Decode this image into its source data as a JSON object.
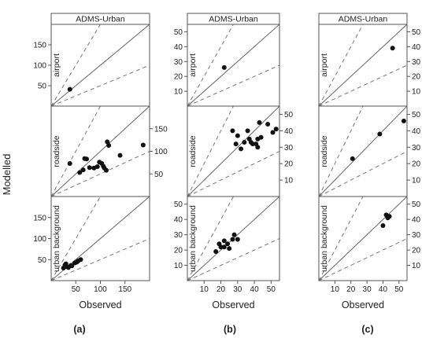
{
  "figure": {
    "ylabel": "Modelled",
    "xlabel": "Observed",
    "strip_label": "ADMS-Urban",
    "row_labels": [
      "airport",
      "roadside",
      "urban background"
    ]
  },
  "chart_data": [
    {
      "type": "scatter",
      "panel_label": "(a)",
      "strip": "ADMS-Urban",
      "xlabel": "Observed",
      "ylabel": "Modelled",
      "xlim": [
        0,
        200
      ],
      "ylim": [
        0,
        200
      ],
      "x_ticks": [
        50,
        100,
        150
      ],
      "y_ticks": [
        50,
        100,
        150
      ],
      "x_tick_labels": [
        "50",
        "100",
        "150"
      ],
      "y_tick_labels": [
        "50",
        "100",
        "150"
      ],
      "y_axis_side": [
        "left",
        "right",
        "left"
      ],
      "grid": false,
      "reference_lines": [
        "1:1",
        "2:1",
        "1:2"
      ],
      "rows": [
        {
          "row_label": "airport",
          "points": [
            [
              38,
              41
            ]
          ]
        },
        {
          "row_label": "roadside",
          "points": [
            [
              38,
              73
            ],
            [
              58,
              53
            ],
            [
              65,
              59
            ],
            [
              68,
              84
            ],
            [
              72,
              83
            ],
            [
              78,
              64
            ],
            [
              87,
              63
            ],
            [
              94,
              66
            ],
            [
              98,
              76
            ],
            [
              103,
              73
            ],
            [
              106,
              67
            ],
            [
              108,
              63
            ],
            [
              112,
              58
            ],
            [
              114,
              121
            ],
            [
              117,
              113
            ],
            [
              140,
              91
            ],
            [
              187,
              114
            ]
          ]
        },
        {
          "row_label": "urban background",
          "points": [
            [
              25,
              30
            ],
            [
              28,
              37
            ],
            [
              30,
              40
            ],
            [
              32,
              33
            ],
            [
              35,
              31
            ],
            [
              40,
              36
            ],
            [
              42,
              35
            ],
            [
              48,
              42
            ],
            [
              52,
              44
            ],
            [
              55,
              47
            ],
            [
              60,
              50
            ]
          ]
        }
      ]
    },
    {
      "type": "scatter",
      "panel_label": "(b)",
      "strip": "ADMS-Urban",
      "xlabel": "Observed",
      "ylabel": "Modelled",
      "xlim": [
        0,
        55
      ],
      "ylim": [
        0,
        55
      ],
      "x_ticks": [
        10,
        20,
        30,
        40,
        50
      ],
      "y_ticks": [
        10,
        20,
        30,
        40,
        50
      ],
      "x_tick_labels": [
        "10",
        "20",
        "30",
        "40",
        "50"
      ],
      "y_tick_labels": [
        "10",
        "20",
        "30",
        "40",
        "50"
      ],
      "y_axis_side": [
        "left",
        "right",
        "left"
      ],
      "grid": false,
      "reference_lines": [
        "1:1",
        "2:1",
        "1:2"
      ],
      "rows": [
        {
          "row_label": "airport",
          "points": [
            [
              22,
              26
            ]
          ]
        },
        {
          "row_label": "roadside",
          "points": [
            [
              27,
              40
            ],
            [
              29,
              32
            ],
            [
              30,
              37
            ],
            [
              32,
              29
            ],
            [
              34,
              33
            ],
            [
              36,
              40
            ],
            [
              37,
              35
            ],
            [
              38,
              33
            ],
            [
              39,
              32
            ],
            [
              41,
              32
            ],
            [
              42,
              30
            ],
            [
              42,
              35
            ],
            [
              43,
              45
            ],
            [
              44,
              36
            ],
            [
              48,
              44
            ],
            [
              51,
              39
            ],
            [
              53,
              41
            ]
          ]
        },
        {
          "row_label": "urban background",
          "points": [
            [
              17,
              19
            ],
            [
              19,
              24
            ],
            [
              20,
              22
            ],
            [
              22,
              22
            ],
            [
              22,
              26
            ],
            [
              24,
              24
            ],
            [
              25,
              21
            ],
            [
              27,
              27
            ],
            [
              28,
              30
            ],
            [
              30,
              27
            ]
          ]
        }
      ]
    },
    {
      "type": "scatter",
      "panel_label": "(c)",
      "strip": "ADMS-Urban",
      "xlabel": "Observed",
      "ylabel": "Modelled",
      "xlim": [
        0,
        55
      ],
      "ylim": [
        0,
        55
      ],
      "x_ticks": [
        10,
        20,
        30,
        40,
        50
      ],
      "y_ticks": [
        10,
        20,
        30,
        40,
        50
      ],
      "x_tick_labels": [
        "10",
        "20",
        "30",
        "40",
        "50"
      ],
      "y_tick_labels": [
        "10",
        "20",
        "30",
        "40",
        "50"
      ],
      "y_axis_side": [
        "right",
        "right",
        "right"
      ],
      "grid": false,
      "reference_lines": [
        "1:1",
        "2:1",
        "1:2"
      ],
      "rows": [
        {
          "row_label": "airport",
          "points": [
            [
              46,
              39
            ]
          ]
        },
        {
          "row_label": "roadside",
          "points": [
            [
              21,
              23
            ],
            [
              38,
              38
            ],
            [
              53,
              46
            ]
          ]
        },
        {
          "row_label": "urban background",
          "points": [
            [
              40,
              36
            ],
            [
              42,
              43
            ],
            [
              43,
              41
            ],
            [
              44,
              42
            ]
          ]
        }
      ]
    }
  ]
}
